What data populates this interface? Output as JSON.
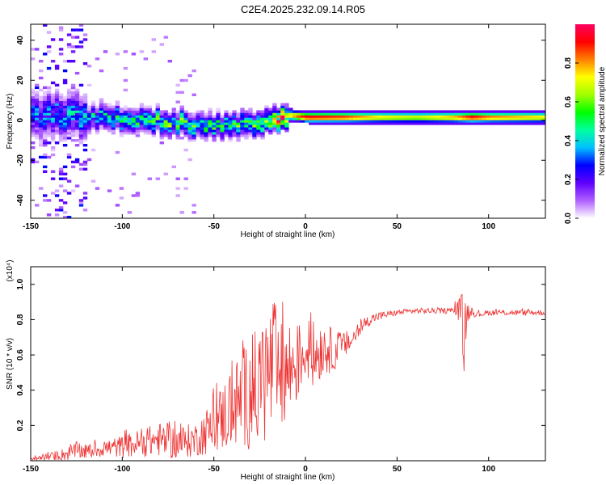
{
  "title": "C2E4.2025.232.09.14.R05",
  "chart_data": [
    {
      "type": "heatmap",
      "xlabel": "Height of straight line (km)",
      "ylabel": "Frequency (Hz)",
      "xlim": [
        -150,
        131
      ],
      "ylim": [
        -49,
        48
      ],
      "xticks": [
        -150,
        -100,
        -50,
        0,
        50,
        100
      ],
      "yticks": [
        -40,
        -20,
        0,
        20,
        40
      ],
      "colorbar": {
        "label": "Normalized spectral amplitude",
        "range": [
          0,
          1
        ],
        "ticks": [
          "0.0",
          "0.2",
          "0.4",
          "0.6",
          "0.8"
        ],
        "tick_values": [
          0,
          0.2,
          0.4,
          0.6,
          0.8
        ],
        "colors": [
          "#ffffff",
          "#b060ff",
          "#6000ff",
          "#0000ff",
          "#00c0ff",
          "#00ffa0",
          "#00ff00",
          "#a0ff00",
          "#ffff00",
          "#ff8000",
          "#ff0000",
          "#ff0060"
        ]
      },
      "ridge": {
        "x": [
          -150,
          -130,
          -110,
          -90,
          -70,
          -50,
          -30,
          -20,
          -15,
          -10,
          0,
          20,
          40,
          60,
          80,
          90,
          100,
          131
        ],
        "freq": [
          2,
          2,
          0,
          0,
          -2,
          -3,
          -2,
          -1,
          1,
          2,
          1,
          1,
          1,
          1,
          1,
          1,
          1,
          1
        ],
        "peak_amplitude": [
          0.3,
          0.35,
          0.4,
          0.45,
          0.5,
          0.45,
          0.5,
          0.6,
          0.9,
          0.75,
          0.95,
          0.9,
          0.75,
          0.7,
          0.8,
          0.95,
          0.85,
          0.75
        ]
      },
      "grid": false
    },
    {
      "type": "line",
      "xlabel": "Height of straight line (km)",
      "ylabel": "SNR (10 * v/v)",
      "yscale_label": "(x10⁴)",
      "xlim": [
        -150,
        131
      ],
      "ylim": [
        0,
        1.1
      ],
      "xticks": [
        -150,
        -100,
        -50,
        0,
        50,
        100
      ],
      "yticks": [
        0.2,
        0.4,
        0.6,
        0.8,
        1.0
      ],
      "color": "#ee3333",
      "series": [
        {
          "x": [
            -150,
            -140,
            -130,
            -125,
            -120,
            -110,
            -100,
            -90,
            -80,
            -70,
            -60,
            -50,
            -45,
            -40,
            -35,
            -30,
            -25,
            -20,
            -17,
            -15,
            -10,
            -5,
            0,
            5,
            10,
            15,
            20,
            25,
            30,
            35,
            40,
            50,
            60,
            70,
            80,
            85,
            87,
            88,
            90,
            95,
            100,
            110,
            120,
            131
          ],
          "y": [
            0.01,
            0.02,
            0.04,
            0.06,
            0.05,
            0.07,
            0.08,
            0.1,
            0.12,
            0.1,
            0.12,
            0.2,
            0.25,
            0.3,
            0.35,
            0.38,
            0.42,
            0.5,
            0.55,
            0.45,
            0.5,
            0.55,
            0.62,
            0.6,
            0.65,
            0.62,
            0.65,
            0.68,
            0.75,
            0.8,
            0.82,
            0.84,
            0.85,
            0.85,
            0.85,
            0.86,
            0.65,
            0.85,
            0.84,
            0.83,
            0.84,
            0.84,
            0.84,
            0.84
          ],
          "spread": [
            0.02,
            0.03,
            0.05,
            0.06,
            0.05,
            0.06,
            0.08,
            0.1,
            0.12,
            0.12,
            0.12,
            0.2,
            0.25,
            0.3,
            0.35,
            0.4,
            0.45,
            0.5,
            0.5,
            0.4,
            0.4,
            0.3,
            0.2,
            0.25,
            0.2,
            0.15,
            0.1,
            0.08,
            0.05,
            0.04,
            0.03,
            0.02,
            0.02,
            0.02,
            0.02,
            0.1,
            0.45,
            0.1,
            0.03,
            0.02,
            0.02,
            0.02,
            0.02,
            0.02
          ]
        }
      ],
      "grid": false
    }
  ]
}
